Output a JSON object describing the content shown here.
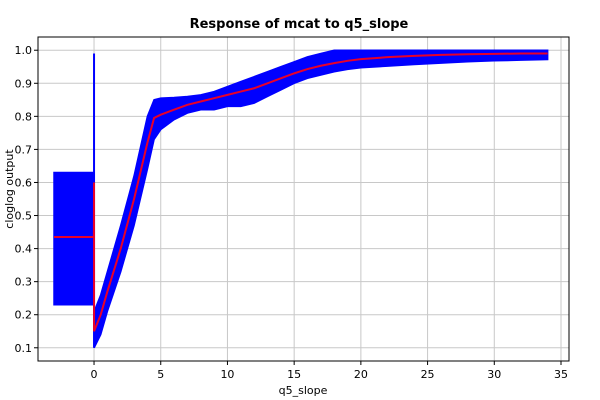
{
  "chart_data": {
    "type": "line",
    "title": "Response of mcat to q5_slope",
    "xlabel": "q5_slope",
    "ylabel": "cloglog output",
    "xlim": [
      -4.2,
      35.6
    ],
    "ylim": [
      0.06,
      1.04
    ],
    "x_ticks": [
      0,
      5,
      10,
      15,
      20,
      25,
      30,
      35
    ],
    "y_ticks": [
      0.1,
      0.2,
      0.3,
      0.4,
      0.5,
      0.6,
      0.7,
      0.8,
      0.9,
      1.0
    ],
    "y_tick_labels": [
      "0.1",
      "0.2",
      "0.3",
      "0.4",
      "0.5",
      "0.6",
      "0.7",
      "0.8",
      "0.9",
      "1.0"
    ],
    "grid": true,
    "colors": {
      "band": "#0000ff",
      "mean": "#e8002a"
    },
    "series": [
      {
        "role": "band",
        "x": [
          -3.0,
          -0.01
        ],
        "lower": [
          0.23,
          0.23
        ],
        "upper": [
          0.63,
          0.63
        ]
      },
      {
        "role": "spike",
        "x": [
          0.0,
          0.0
        ],
        "y": [
          0.1,
          0.99
        ]
      },
      {
        "role": "band",
        "x": [
          0.01,
          0.5,
          1.0,
          2.0,
          3.0,
          4.0,
          4.5,
          5.0,
          6.0,
          7.0,
          8.0,
          9.0,
          10.0,
          11.0,
          12.0,
          13.0,
          14.0,
          15.0,
          16.0,
          17.0,
          18.0,
          19.0,
          20.0,
          22.0,
          24.0,
          26.0,
          28.0,
          30.0,
          32.0,
          34.0
        ],
        "lower": [
          0.1,
          0.14,
          0.21,
          0.33,
          0.47,
          0.64,
          0.73,
          0.76,
          0.79,
          0.81,
          0.82,
          0.82,
          0.83,
          0.83,
          0.84,
          0.86,
          0.88,
          0.9,
          0.915,
          0.925,
          0.935,
          0.942,
          0.947,
          0.952,
          0.957,
          0.961,
          0.965,
          0.968,
          0.97,
          0.972
        ],
        "upper": [
          0.21,
          0.26,
          0.33,
          0.47,
          0.62,
          0.8,
          0.85,
          0.855,
          0.857,
          0.86,
          0.865,
          0.875,
          0.89,
          0.905,
          0.92,
          0.935,
          0.95,
          0.965,
          0.98,
          0.99,
          1.0,
          1.0,
          1.0,
          1.0,
          1.0,
          1.0,
          1.0,
          1.0,
          1.0,
          1.0
        ]
      },
      {
        "role": "mean",
        "x": [
          -3.0,
          -0.01,
          0.0,
          0.0,
          0.05,
          0.5,
          1.0,
          2.0,
          3.0,
          4.0,
          4.5,
          5.0,
          6.0,
          7.0,
          8.0,
          9.0,
          10.0,
          11.0,
          12.0,
          13.0,
          14.0,
          15.0,
          16.0,
          17.0,
          18.0,
          19.0,
          20.0,
          22.0,
          24.0,
          26.0,
          28.0,
          30.0,
          32.0,
          34.0
        ],
        "y": [
          0.435,
          0.435,
          0.6,
          0.15,
          0.155,
          0.2,
          0.27,
          0.4,
          0.55,
          0.72,
          0.795,
          0.805,
          0.82,
          0.835,
          0.845,
          0.855,
          0.865,
          0.875,
          0.885,
          0.9,
          0.915,
          0.93,
          0.943,
          0.953,
          0.961,
          0.968,
          0.973,
          0.979,
          0.983,
          0.986,
          0.988,
          0.989,
          0.99,
          0.99
        ]
      }
    ]
  }
}
